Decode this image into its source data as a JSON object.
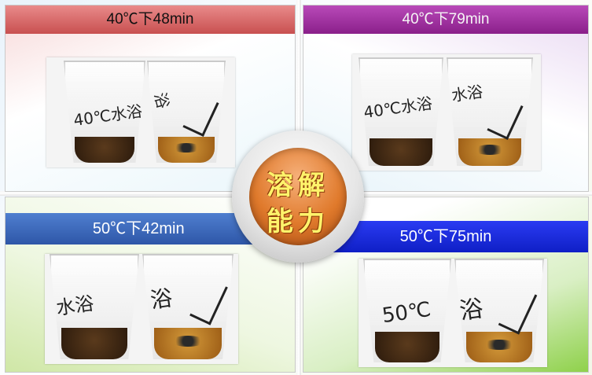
{
  "panels": {
    "top_left": {
      "header": "40℃下48min",
      "cup_left_label": "40℃水浴",
      "cup_right_label": "浴"
    },
    "top_right": {
      "header": "40℃下79min",
      "cup_left_label": "40℃水浴",
      "cup_right_label": "水浴"
    },
    "bottom_left": {
      "header": "50℃下42min",
      "cup_left_label": "水浴",
      "cup_right_label": "浴"
    },
    "bottom_right": {
      "header": "50℃下75min",
      "cup_left_label": "50℃",
      "cup_right_label": "浴"
    }
  },
  "center": {
    "line1": "溶解",
    "line2": "能力"
  },
  "colors": {
    "header_top_left": "#c85050",
    "header_top_right": "#8a1f8a",
    "header_bottom_left": "#2e56a8",
    "header_bottom_right": "#0f1fc6",
    "center_text": "#fff36b",
    "center_fill": "#e07a2c"
  }
}
